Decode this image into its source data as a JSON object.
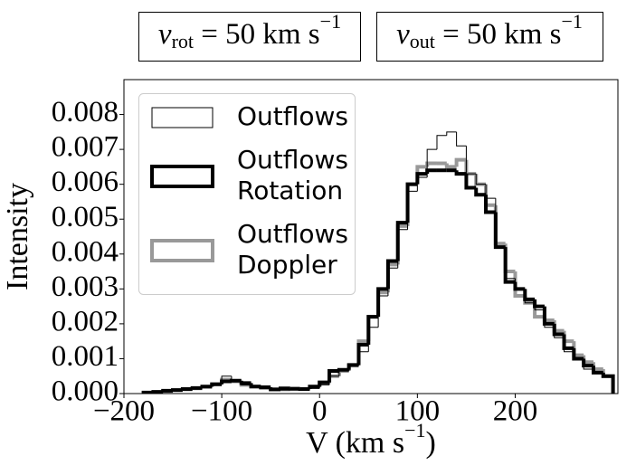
{
  "chart_data": {
    "type": "histogram",
    "annotations": [
      {
        "symbol": "v",
        "subscript": "rot",
        "text": " = 50 km s",
        "superscript": "−1"
      },
      {
        "symbol": "v",
        "subscript": "out",
        "text": " = 50 km s",
        "superscript": "−1"
      }
    ],
    "xlabel": {
      "text": "V (km s",
      "superscript": "−1",
      "suffix": ")"
    },
    "ylabel": "Intensity",
    "bins": [
      -180,
      -170,
      -160,
      -150,
      -140,
      -130,
      -120,
      -110,
      -100,
      -90,
      -80,
      -70,
      -60,
      -50,
      -40,
      -30,
      -20,
      -10,
      0,
      10,
      20,
      30,
      40,
      50,
      60,
      70,
      80,
      90,
      100,
      110,
      120,
      130,
      140,
      150,
      160,
      170,
      180,
      190,
      200,
      210,
      220,
      230,
      240,
      250,
      260,
      270,
      280,
      290,
      300
    ],
    "series": [
      {
        "name": "Outflows",
        "color": "#000000",
        "linewidth": 1,
        "values": [
          2e-05,
          4e-05,
          7e-05,
          0.0001,
          0.00012,
          0.00015,
          0.00019,
          0.00026,
          0.0005,
          0.00035,
          0.00025,
          0.00018,
          0.00015,
          0.0001,
          0.0001,
          0.00012,
          0.00012,
          0.00015,
          0.00025,
          0.0005,
          0.00065,
          0.0008,
          0.0012,
          0.0019,
          0.0028,
          0.0036,
          0.0047,
          0.0058,
          0.0062,
          0.007,
          0.0074,
          0.0075,
          0.0071,
          0.0063,
          0.006,
          0.0056,
          0.0042,
          0.0033,
          0.003,
          0.0026,
          0.0024,
          0.0019,
          0.0016,
          0.0012,
          0.001,
          0.0007,
          0.0006,
          0.0005
        ]
      },
      {
        "name": "Outflows Rotation",
        "color": "#000000",
        "linewidth": 4,
        "values": [
          3e-05,
          5e-05,
          8e-05,
          0.0001,
          0.00013,
          0.00016,
          0.0002,
          0.00027,
          0.00035,
          0.00037,
          0.0003,
          0.0002,
          0.00018,
          0.00012,
          0.00015,
          0.00014,
          0.00013,
          0.0002,
          0.00032,
          0.00065,
          0.00068,
          0.00082,
          0.0014,
          0.0022,
          0.003,
          0.0038,
          0.0049,
          0.006,
          0.0063,
          0.0064,
          0.0064,
          0.0064,
          0.0063,
          0.0059,
          0.0057,
          0.0052,
          0.0042,
          0.0032,
          0.003,
          0.0027,
          0.0025,
          0.002,
          0.0017,
          0.0013,
          0.001,
          0.0008,
          0.0006,
          0.0005
        ]
      },
      {
        "name": "Outflows Doppler",
        "color": "#999999",
        "linewidth": 4,
        "values": [
          2e-05,
          4e-05,
          7e-05,
          0.0001,
          0.00012,
          0.00015,
          0.00019,
          0.00026,
          0.0004,
          0.00035,
          0.00025,
          0.0002,
          0.00016,
          0.00012,
          0.00012,
          0.00013,
          0.00013,
          0.00018,
          0.0003,
          0.0005,
          0.00065,
          0.0008,
          0.0015,
          0.0022,
          0.0029,
          0.0037,
          0.0048,
          0.006,
          0.0065,
          0.0066,
          0.0066,
          0.0065,
          0.0067,
          0.0063,
          0.006,
          0.0054,
          0.0043,
          0.0035,
          0.0028,
          0.0026,
          0.0022,
          0.0021,
          0.0018,
          0.0015,
          0.0011,
          0.0009,
          0.0007,
          0.0005
        ]
      }
    ],
    "xlim": [
      -200,
      305
    ],
    "ylim": [
      0,
      0.009
    ],
    "xticks": [
      {
        "value": -200,
        "label": "−200"
      },
      {
        "value": -100,
        "label": "−100"
      },
      0,
      100,
      200
    ],
    "yticks": [
      {
        "value": 0,
        "label": "0.000"
      },
      {
        "value": 0.001,
        "label": "0.001"
      },
      {
        "value": 0.002,
        "label": "0.002"
      },
      {
        "value": 0.003,
        "label": "0.003"
      },
      {
        "value": 0.004,
        "label": "0.004"
      },
      {
        "value": 0.005,
        "label": "0.005"
      },
      {
        "value": 0.006,
        "label": "0.006"
      },
      {
        "value": 0.007,
        "label": "0.007"
      },
      {
        "value": 0.008,
        "label": "0.008"
      }
    ],
    "legend": "upper left",
    "grid": false
  }
}
